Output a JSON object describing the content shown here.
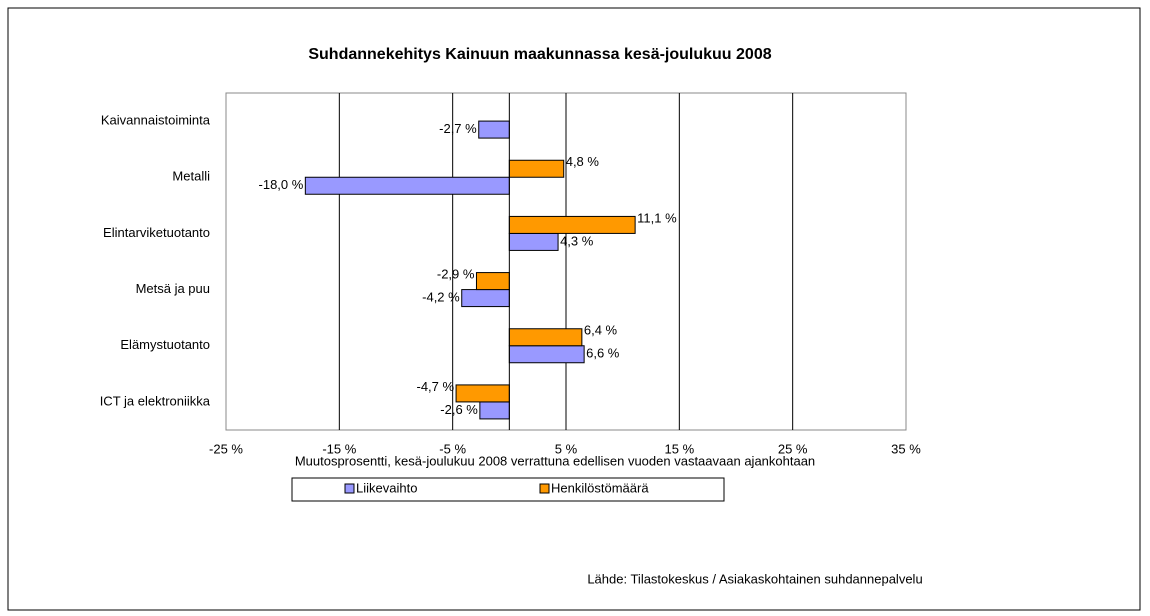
{
  "chart_data": {
    "type": "hbar",
    "title": "Suhdannekehitys Kainuun maakunnassa kesä-joulukuu 2008",
    "x_label": "Muutosprosentti, kesä-joulukuu 2008 verrattuna edellisen vuoden vastaavaan ajankohtaan",
    "source": "Lähde: Tilastokeskus / Asiakaskohtainen suhdannepalvelu",
    "categories": [
      "Kaivannaistoiminta",
      "Metalli",
      "Elintarviketuotanto",
      "Metsä ja puu",
      "Elämystuotanto",
      "ICT ja elektroniikka"
    ],
    "series": [
      {
        "name": "Liikevaihto",
        "color": "#9999ff",
        "values": [
          -2.7,
          -18.0,
          4.3,
          -4.2,
          6.6,
          -2.6
        ],
        "value_labels": [
          "-2,7 %",
          "-18,0 %",
          "4,3 %",
          "-4,2 %",
          "6,6 %",
          "-2,6 %"
        ]
      },
      {
        "name": "Henkilöstömäärä",
        "color": "#ff9900",
        "values": [
          null,
          4.8,
          11.1,
          -2.9,
          6.4,
          -4.7
        ],
        "value_labels": [
          null,
          "4,8 %",
          "11,1 %",
          "-2,9 %",
          "6,4 %",
          "-4,7 %"
        ]
      }
    ],
    "xlim": [
      -25,
      35
    ],
    "xticks": [
      {
        "value": -25,
        "label": "-25 %"
      },
      {
        "value": -15,
        "label": "-15 %"
      },
      {
        "value": -5,
        "label": "-5 %"
      },
      {
        "value": 5,
        "label": "5 %"
      },
      {
        "value": 15,
        "label": "15 %"
      },
      {
        "value": 25,
        "label": "25 %"
      },
      {
        "value": 35,
        "label": "35 %"
      }
    ],
    "grid": true
  }
}
